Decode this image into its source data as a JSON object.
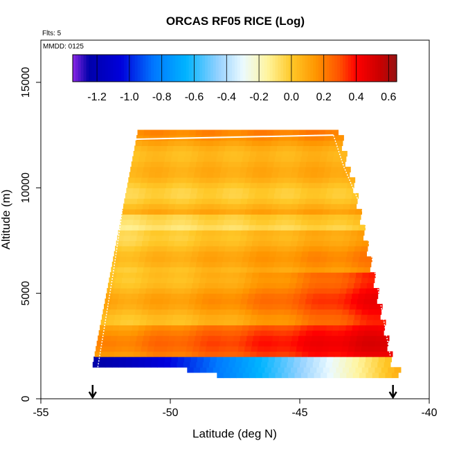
{
  "chart_data": {
    "type": "heatmap",
    "title": "ORCAS RF05 RICE (Log)",
    "xlabel": "Latitude (deg N)",
    "ylabel": "Altitude (m)",
    "note_flights": "Flts: 5",
    "note_mmdd": "MMDD: 0125",
    "xlim": [
      -55,
      -40
    ],
    "ylim": [
      0,
      17000
    ],
    "x_ticks": [
      -55,
      -50,
      -45,
      -40
    ],
    "y_ticks": [
      0,
      5000,
      10000,
      15000
    ],
    "colorbar": {
      "range": [
        -1.35,
        0.65
      ],
      "ticks": [
        -1.2,
        -1.0,
        -0.8,
        -0.6,
        -0.4,
        -0.2,
        0.0,
        0.2,
        0.4,
        0.6
      ],
      "tick_labels": [
        "-1.2",
        "-1.0",
        "-0.8",
        "-0.6",
        "-0.4",
        "-0.2",
        "0.0",
        "0.2",
        "0.4",
        "0.6"
      ]
    },
    "flight_track": [
      {
        "lat": -52.8,
        "alt": 1500
      },
      {
        "lat": -52.6,
        "alt": 3000
      },
      {
        "lat": -52.2,
        "alt": 6000
      },
      {
        "lat": -51.9,
        "alt": 8500
      },
      {
        "lat": -51.7,
        "alt": 10500
      },
      {
        "lat": -51.6,
        "alt": 12300
      },
      {
        "lat": -43.7,
        "alt": 12500
      },
      {
        "lat": -43.3,
        "alt": 11000
      },
      {
        "lat": -42.6,
        "alt": 9000
      },
      {
        "lat": -42.1,
        "alt": 6000
      },
      {
        "lat": -41.8,
        "alt": 4000
      },
      {
        "lat": -41.5,
        "alt": 2000
      }
    ],
    "markers": [
      {
        "lat": -53.0,
        "alt": 0
      },
      {
        "lat": -41.4,
        "alt": 0
      }
    ],
    "field": {
      "alt_bottom": 1500,
      "alt_top_left": 12300,
      "alt_top_right": 12600,
      "lat_left": -53.0,
      "lat_right": -41.5
    }
  }
}
